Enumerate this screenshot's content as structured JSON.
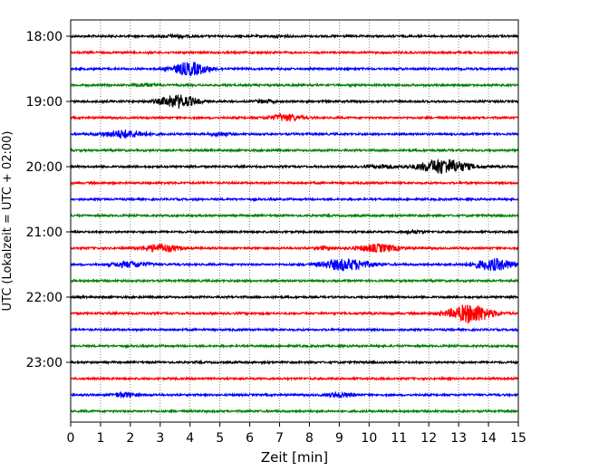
{
  "chart_data": {
    "type": "seismogram",
    "xlabel": "Zeit  [min]",
    "ylabel": "UTC (Lokalzeit = UTC + 02:00)",
    "xlim": [
      0,
      15
    ],
    "x_ticks": [
      "0",
      "1",
      "2",
      "3",
      "4",
      "5",
      "6",
      "7",
      "8",
      "9",
      "10",
      "11",
      "12",
      "13",
      "14",
      "15"
    ],
    "y_ticks": [
      "18:00",
      "19:00",
      "20:00",
      "21:00",
      "22:00",
      "23:00"
    ],
    "grid": "vertical dotted",
    "row_colors": [
      "#000000",
      "#ff0000",
      "#0000ff",
      "#008000"
    ],
    "rows": [
      {
        "time": "18:00",
        "events": [
          {
            "t": 3.5,
            "amp": 1.2,
            "w": 0.4
          },
          {
            "t": 7,
            "amp": 1,
            "w": 0.3
          }
        ]
      },
      {
        "time": "18:15",
        "events": []
      },
      {
        "time": "18:30",
        "events": [
          {
            "t": 4.0,
            "amp": 7,
            "w": 0.6
          }
        ]
      },
      {
        "time": "18:45",
        "events": [
          {
            "t": 2.5,
            "amp": 1.5,
            "w": 0.4
          }
        ]
      },
      {
        "time": "19:00",
        "events": [
          {
            "t": 3.6,
            "amp": 7,
            "w": 0.6
          },
          {
            "t": 6.5,
            "amp": 1.5,
            "w": 0.3
          }
        ]
      },
      {
        "time": "19:15",
        "events": [
          {
            "t": 7.2,
            "amp": 3.5,
            "w": 0.5
          }
        ]
      },
      {
        "time": "19:30",
        "events": [
          {
            "t": 1.8,
            "amp": 4,
            "w": 0.7
          },
          {
            "t": 5,
            "amp": 2,
            "w": 0.3
          }
        ]
      },
      {
        "time": "19:45",
        "events": []
      },
      {
        "time": "20:00",
        "events": [
          {
            "t": 10.5,
            "amp": 2,
            "w": 0.4
          },
          {
            "t": 12.5,
            "amp": 8,
            "w": 0.8
          }
        ]
      },
      {
        "time": "20:15",
        "events": []
      },
      {
        "time": "20:30",
        "events": []
      },
      {
        "time": "20:45",
        "events": []
      },
      {
        "time": "21:00",
        "events": [
          {
            "t": 11.5,
            "amp": 1.5,
            "w": 0.3
          }
        ]
      },
      {
        "time": "21:15",
        "events": [
          {
            "t": 3.0,
            "amp": 4,
            "w": 0.6
          },
          {
            "t": 10.3,
            "amp": 4,
            "w": 0.7
          },
          {
            "t": 8.5,
            "amp": 1.5,
            "w": 0.3
          }
        ]
      },
      {
        "time": "21:30",
        "events": [
          {
            "t": 2.0,
            "amp": 3,
            "w": 0.6
          },
          {
            "t": 9.2,
            "amp": 6,
            "w": 0.8
          },
          {
            "t": 14.2,
            "amp": 6,
            "w": 0.7
          }
        ]
      },
      {
        "time": "21:45",
        "events": []
      },
      {
        "time": "22:00",
        "events": []
      },
      {
        "time": "22:15",
        "events": [
          {
            "t": 13.4,
            "amp": 10,
            "w": 0.7
          }
        ]
      },
      {
        "time": "22:30",
        "events": []
      },
      {
        "time": "22:45",
        "events": []
      },
      {
        "time": "23:00",
        "events": []
      },
      {
        "time": "23:15",
        "events": []
      },
      {
        "time": "23:30",
        "events": [
          {
            "t": 1.8,
            "amp": 2.5,
            "w": 0.4
          },
          {
            "t": 9.0,
            "amp": 2.5,
            "w": 0.4
          }
        ]
      },
      {
        "time": "23:45",
        "events": []
      }
    ]
  }
}
